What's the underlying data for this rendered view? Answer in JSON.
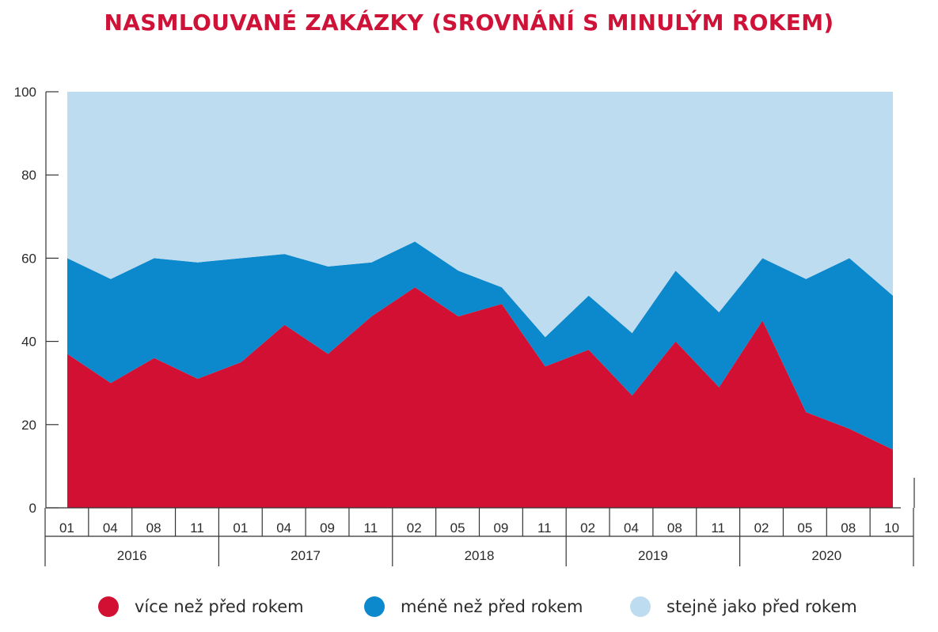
{
  "title": "NASMLOUVANÉ ZAKÁZKY (SROVNÁNÍ S MINULÝM ROKEM)",
  "chart_data": {
    "type": "area",
    "stacked": true,
    "title": "NASMLOUVANÉ ZAKÁZKY (SROVNÁNÍ S MINULÝM ROKEM)",
    "ylim": [
      0,
      100
    ],
    "yticks": [
      "0",
      "20",
      "40",
      "60",
      "80",
      "100"
    ],
    "categories": [
      "01",
      "04",
      "08",
      "11",
      "01",
      "04",
      "09",
      "11",
      "02",
      "05",
      "09",
      "11",
      "02",
      "04",
      "08",
      "11",
      "02",
      "05",
      "08",
      "10"
    ],
    "years": [
      {
        "label": "2016",
        "span": 4
      },
      {
        "label": "2017",
        "span": 4
      },
      {
        "label": "2018",
        "span": 4
      },
      {
        "label": "2019",
        "span": 4
      },
      {
        "label": "2020",
        "span": 4
      }
    ],
    "series": [
      {
        "name": "více než před rokem",
        "color": "#d21033",
        "values": [
          37,
          30,
          36,
          31,
          35,
          44,
          37,
          46,
          53,
          46,
          49,
          34,
          38,
          27,
          40,
          29,
          45,
          23,
          19,
          14
        ]
      },
      {
        "name": "méně než před rokem",
        "color": "#0b89cc",
        "values": [
          23,
          25,
          24,
          28,
          25,
          17,
          21,
          13,
          11,
          11,
          4,
          7,
          13,
          15,
          17,
          18,
          15,
          32,
          41,
          37
        ]
      },
      {
        "name": "stejně jako před rokem",
        "color": "#bedcf0",
        "values": [
          40,
          45,
          40,
          41,
          40,
          39,
          42,
          41,
          36,
          43,
          47,
          59,
          49,
          58,
          43,
          53,
          40,
          45,
          40,
          49
        ]
      }
    ],
    "legend_position": "bottom",
    "grid": false
  },
  "legend": [
    {
      "label": "více než před rokem",
      "color": "#d21033"
    },
    {
      "label": "méně než před rokem",
      "color": "#0b89cc"
    },
    {
      "label": "stejně jako před rokem",
      "color": "#bedcf0"
    }
  ]
}
